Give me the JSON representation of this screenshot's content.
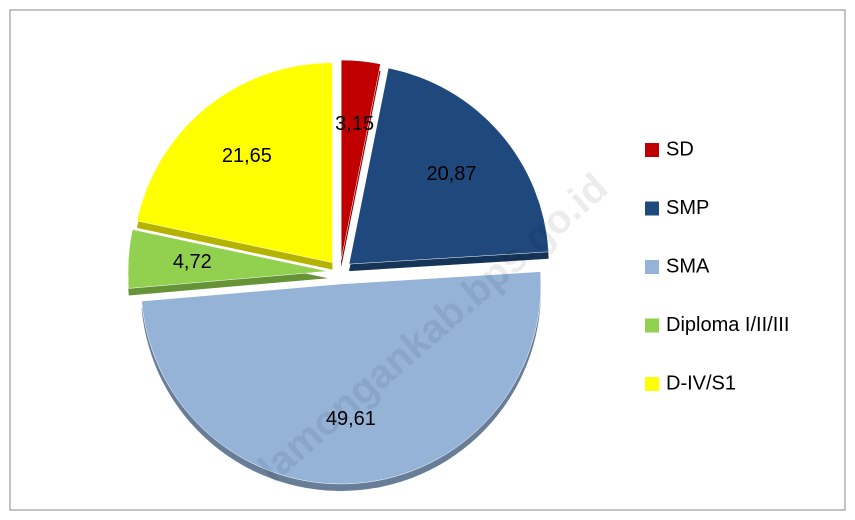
{
  "chart_data": {
    "type": "pie",
    "categories": [
      "SD",
      "SMP",
      "SMA",
      "Diploma I/II/III",
      "D-IV/S1"
    ],
    "values": [
      3.15,
      20.87,
      49.61,
      4.72,
      21.65
    ],
    "value_labels": [
      "3,15",
      "20,87",
      "49,61",
      "4,72",
      "21,65"
    ],
    "colors": [
      "#c00000",
      "#1f497d",
      "#95b3d7",
      "#92d050",
      "#ffff00"
    ],
    "legend": "right",
    "watermark": "lamongankab.bps.go.id"
  }
}
